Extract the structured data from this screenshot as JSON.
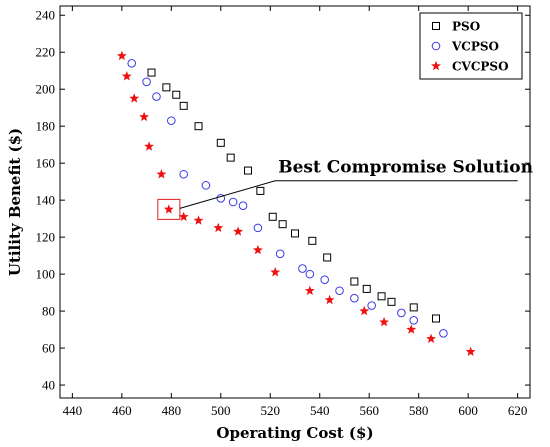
{
  "chart_data": {
    "type": "scatter",
    "xlabel": "Operating Cost ($)",
    "ylabel": "Utility Benefit ($)",
    "xlim": [
      435,
      625
    ],
    "ylim": [
      33,
      245
    ],
    "xticks": [
      440,
      460,
      480,
      500,
      520,
      540,
      560,
      580,
      600,
      620
    ],
    "yticks": [
      40,
      60,
      80,
      100,
      120,
      140,
      160,
      180,
      200,
      220,
      240
    ],
    "grid": false,
    "legend_position": "top-right",
    "series": [
      {
        "name": "PSO",
        "marker": "square",
        "color": "#000000",
        "points": [
          [
            472,
            209
          ],
          [
            478,
            201
          ],
          [
            482,
            197
          ],
          [
            485,
            191
          ],
          [
            491,
            180
          ],
          [
            500,
            171
          ],
          [
            504,
            163
          ],
          [
            511,
            156
          ],
          [
            516,
            145
          ],
          [
            521,
            131
          ],
          [
            525,
            127
          ],
          [
            530,
            122
          ],
          [
            537,
            118
          ],
          [
            543,
            109
          ],
          [
            554,
            96
          ],
          [
            559,
            92
          ],
          [
            565,
            88
          ],
          [
            569,
            85
          ],
          [
            578,
            82
          ],
          [
            587,
            76
          ]
        ]
      },
      {
        "name": "VCPSO",
        "marker": "circle",
        "color": "#3a3ae6",
        "points": [
          [
            464,
            214
          ],
          [
            470,
            204
          ],
          [
            474,
            196
          ],
          [
            480,
            183
          ],
          [
            485,
            154
          ],
          [
            494,
            148
          ],
          [
            500,
            141
          ],
          [
            505,
            139
          ],
          [
            509,
            137
          ],
          [
            515,
            125
          ],
          [
            524,
            111
          ],
          [
            533,
            103
          ],
          [
            536,
            100
          ],
          [
            542,
            97
          ],
          [
            548,
            91
          ],
          [
            554,
            87
          ],
          [
            561,
            83
          ],
          [
            573,
            79
          ],
          [
            578,
            75
          ],
          [
            590,
            68
          ]
        ]
      },
      {
        "name": "CVCPSO",
        "marker": "star",
        "color": "#ee1111",
        "points": [
          [
            460,
            218
          ],
          [
            462,
            207
          ],
          [
            465,
            195
          ],
          [
            469,
            185
          ],
          [
            471,
            169
          ],
          [
            476,
            154
          ],
          [
            479,
            135
          ],
          [
            485,
            131
          ],
          [
            491,
            129
          ],
          [
            499,
            125
          ],
          [
            507,
            123
          ],
          [
            515,
            113
          ],
          [
            522,
            101
          ],
          [
            536,
            91
          ],
          [
            544,
            86
          ],
          [
            558,
            80
          ],
          [
            566,
            74
          ],
          [
            577,
            70
          ],
          [
            585,
            65
          ],
          [
            601,
            58
          ]
        ]
      }
    ],
    "annotation": {
      "text": "Best Compromise Solution",
      "target": [
        479,
        135
      ],
      "box_color": "#e02020"
    }
  }
}
